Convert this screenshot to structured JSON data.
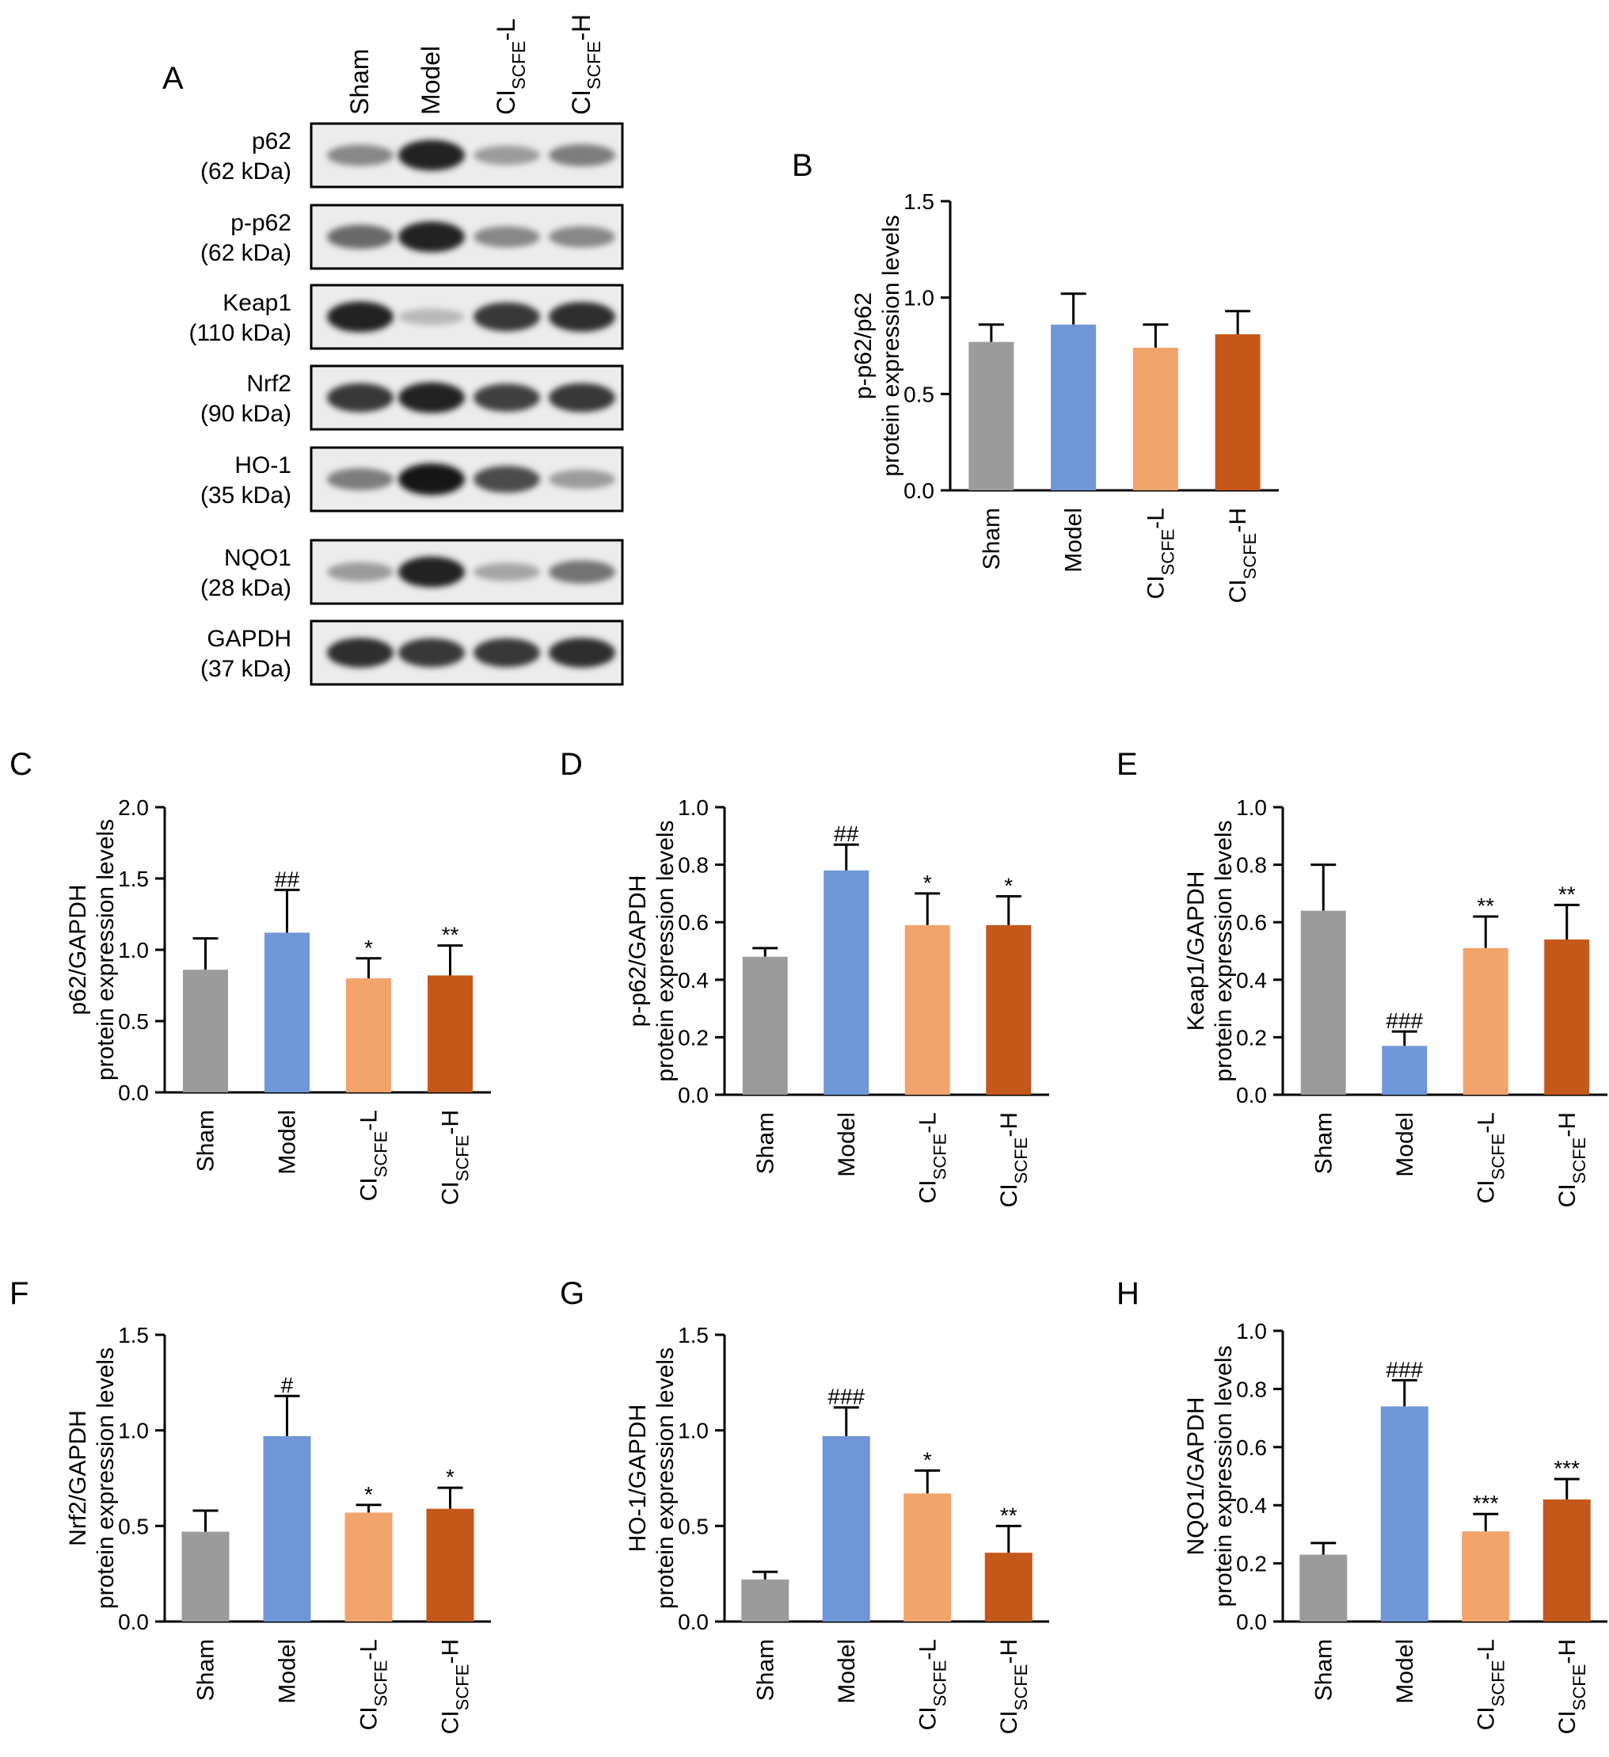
{
  "western_blot": {
    "panel_label": "A",
    "lanes": [
      {
        "main": "Sham",
        "sub": "",
        "suffix": ""
      },
      {
        "main": "Model",
        "sub": "",
        "suffix": ""
      },
      {
        "main": "CI",
        "sub": "SCFE",
        "suffix": "-L"
      },
      {
        "main": "CI",
        "sub": "SCFE",
        "suffix": "-H"
      }
    ],
    "rows": [
      {
        "name": "p62",
        "kda": "(62 kDa)",
        "intensity": [
          0.45,
          0.95,
          0.35,
          0.5
        ]
      },
      {
        "name": "p-p62",
        "kda": "(62 kDa)",
        "intensity": [
          0.6,
          0.95,
          0.45,
          0.45
        ]
      },
      {
        "name": "Keap1",
        "kda": "(110 kDa)",
        "intensity": [
          0.95,
          0.2,
          0.85,
          0.9
        ]
      },
      {
        "name": "Nrf2",
        "kda": "(90 kDa)",
        "intensity": [
          0.85,
          0.95,
          0.8,
          0.85
        ]
      },
      {
        "name": "HO-1",
        "kda": "(35 kDa)",
        "intensity": [
          0.5,
          1.0,
          0.75,
          0.35
        ]
      },
      {
        "name": "NQO1",
        "kda": "(28 kDa)",
        "intensity": [
          0.35,
          0.95,
          0.3,
          0.55
        ]
      },
      {
        "name": "GAPDH",
        "kda": "(37 kDa)",
        "intensity": [
          0.9,
          0.85,
          0.85,
          0.9
        ]
      }
    ]
  },
  "colors": {
    "sham": "#9b9b9b",
    "model": "#6f97d8",
    "low": "#f2a46c",
    "high": "#c4581a"
  },
  "chart_data": [
    {
      "panel_label": "B",
      "type": "bar",
      "ylabel_line1": "p-p62/p62",
      "ylabel_line2": "protein expression levels",
      "ylim": [
        0,
        1.5
      ],
      "ticks": [
        "0.0",
        "0.5",
        "1.0",
        "1.5"
      ],
      "categories": [
        "Sham",
        "Model",
        "CI-SCFE-L",
        "CI-SCFE-H"
      ],
      "values": [
        0.77,
        0.86,
        0.74,
        0.81
      ],
      "errors": [
        0.09,
        0.16,
        0.12,
        0.12
      ],
      "annotations": [
        "",
        "",
        "",
        ""
      ]
    },
    {
      "panel_label": "C",
      "type": "bar",
      "ylabel_line1": "p62/GAPDH",
      "ylabel_line2": "protein expression levels",
      "ylim": [
        0,
        2.0
      ],
      "ticks": [
        "0.0",
        "0.5",
        "1.0",
        "1.5",
        "2.0"
      ],
      "categories": [
        "Sham",
        "Model",
        "CI-SCFE-L",
        "CI-SCFE-H"
      ],
      "values": [
        0.86,
        1.12,
        0.8,
        0.82
      ],
      "errors": [
        0.22,
        0.3,
        0.14,
        0.21
      ],
      "annotations": [
        "",
        "##",
        "*",
        "**"
      ]
    },
    {
      "panel_label": "D",
      "type": "bar",
      "ylabel_line1": "p-p62/GAPDH",
      "ylabel_line2": "protein expression levels",
      "ylim": [
        0,
        1.0
      ],
      "ticks": [
        "0.0",
        "0.2",
        "0.4",
        "0.6",
        "0.8",
        "1.0"
      ],
      "categories": [
        "Sham",
        "Model",
        "CI-SCFE-L",
        "CI-SCFE-H"
      ],
      "values": [
        0.48,
        0.78,
        0.59,
        0.59
      ],
      "errors": [
        0.03,
        0.09,
        0.11,
        0.1
      ],
      "annotations": [
        "",
        "##",
        "*",
        "*"
      ]
    },
    {
      "panel_label": "E",
      "type": "bar",
      "ylabel_line1": "Keap1/GAPDH",
      "ylabel_line2": "protein expression levels",
      "ylim": [
        0,
        1.0
      ],
      "ticks": [
        "0.0",
        "0.2",
        "0.4",
        "0.6",
        "0.8",
        "1.0"
      ],
      "categories": [
        "Sham",
        "Model",
        "CI-SCFE-L",
        "CI-SCFE-H"
      ],
      "values": [
        0.64,
        0.17,
        0.51,
        0.54
      ],
      "errors": [
        0.16,
        0.05,
        0.11,
        0.12
      ],
      "annotations": [
        "",
        "###",
        "**",
        "**"
      ]
    },
    {
      "panel_label": "F",
      "type": "bar",
      "ylabel_line1": "Nrf2/GAPDH",
      "ylabel_line2": "protein expression levels",
      "ylim": [
        0,
        1.5
      ],
      "ticks": [
        "0.0",
        "0.5",
        "1.0",
        "1.5"
      ],
      "categories": [
        "Sham",
        "Model",
        "CI-SCFE-L",
        "CI-SCFE-H"
      ],
      "values": [
        0.47,
        0.97,
        0.57,
        0.59
      ],
      "errors": [
        0.11,
        0.21,
        0.04,
        0.11
      ],
      "annotations": [
        "",
        "#",
        "*",
        "*"
      ]
    },
    {
      "panel_label": "G",
      "type": "bar",
      "ylabel_line1": "HO-1/GAPDH",
      "ylabel_line2": "protein expression levels",
      "ylim": [
        0,
        1.5
      ],
      "ticks": [
        "0.0",
        "0.5",
        "1.0",
        "1.5"
      ],
      "categories": [
        "Sham",
        "Model",
        "CI-SCFE-L",
        "CI-SCFE-H"
      ],
      "values": [
        0.22,
        0.97,
        0.67,
        0.36
      ],
      "errors": [
        0.04,
        0.15,
        0.12,
        0.14
      ],
      "annotations": [
        "",
        "###",
        "*",
        "**"
      ]
    },
    {
      "panel_label": "H",
      "type": "bar",
      "ylabel_line1": "NQO1/GAPDH",
      "ylabel_line2": "protein expression levels",
      "ylim": [
        0,
        1.0
      ],
      "ticks": [
        "0.0",
        "0.2",
        "0.4",
        "0.6",
        "0.8",
        "1.0"
      ],
      "categories": [
        "Sham",
        "Model",
        "CI-SCFE-L",
        "CI-SCFE-H"
      ],
      "values": [
        0.23,
        0.74,
        0.31,
        0.42
      ],
      "errors": [
        0.04,
        0.09,
        0.06,
        0.07
      ],
      "annotations": [
        "",
        "###",
        "***",
        "***"
      ]
    }
  ]
}
